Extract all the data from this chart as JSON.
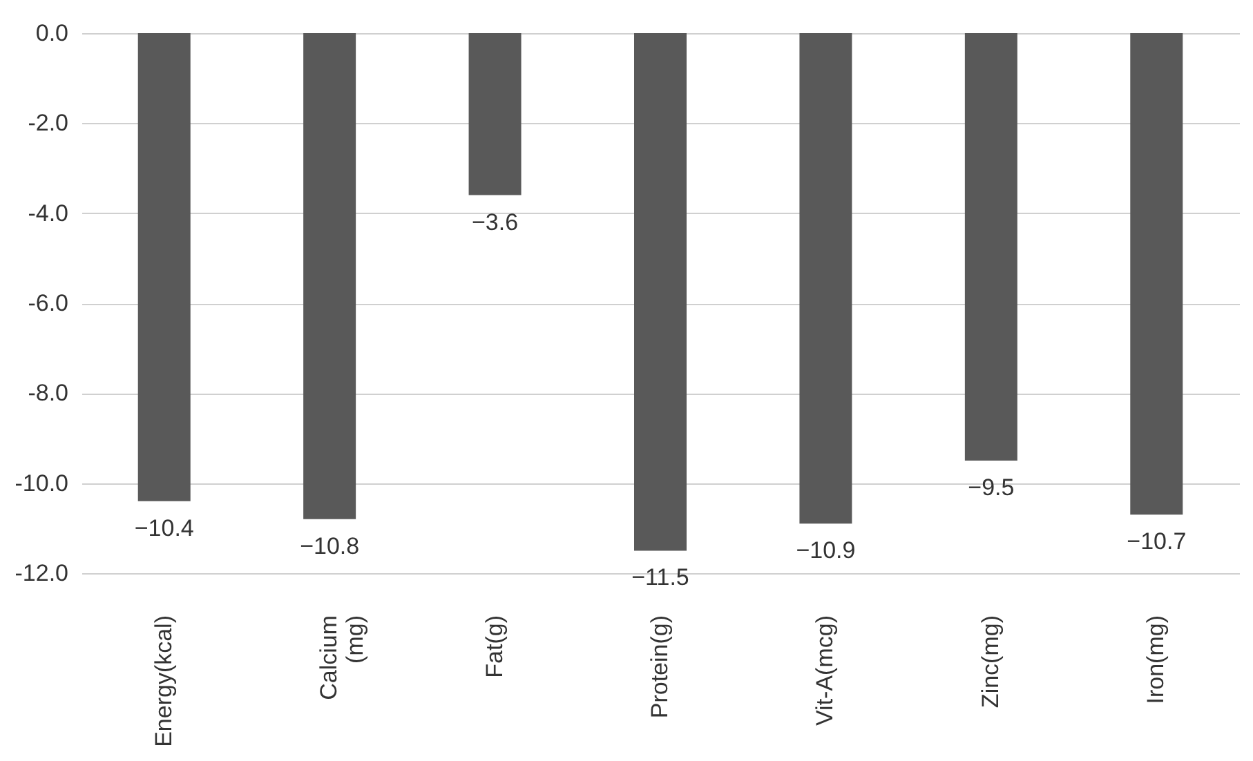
{
  "chart_data": {
    "type": "bar",
    "categories": [
      "Energy(kcal)",
      "Calcium (mg)",
      "Fat(g)",
      "Protein(g)",
      "Vit-A(mcg)",
      "Zinc(mg)",
      "Iron(mg)"
    ],
    "values": [
      -10.4,
      -10.8,
      -3.6,
      -11.5,
      -10.9,
      -9.5,
      -10.7
    ],
    "color": "#595959",
    "ylim": [
      -12,
      0
    ],
    "yticks": [
      {
        "value": 0,
        "label": "0.0"
      },
      {
        "value": -2,
        "label": "-2.0"
      },
      {
        "value": -4,
        "label": "-4.0"
      },
      {
        "value": -6,
        "label": "-6.0"
      },
      {
        "value": -8,
        "label": "-8.0"
      },
      {
        "value": -10,
        "label": "-10.0"
      },
      {
        "value": -12,
        "label": "-12.0"
      }
    ],
    "grid": "y",
    "data_labels": true
  }
}
